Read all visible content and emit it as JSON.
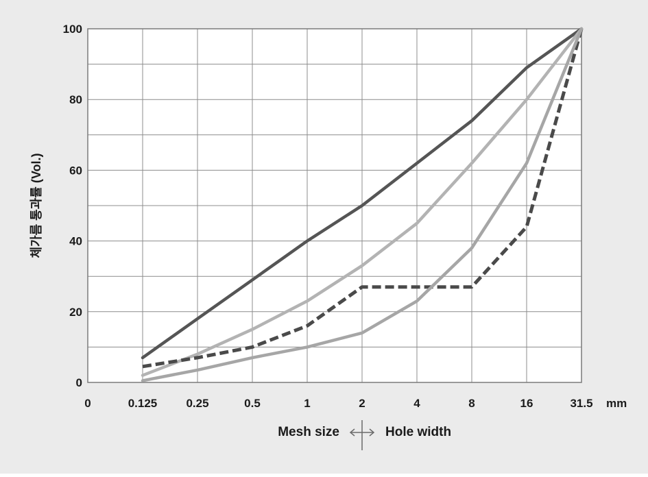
{
  "chart_data": {
    "type": "line",
    "title": "",
    "ylabel": "체가름 통과률 (Vol.)",
    "x_unit": "mm",
    "x": [
      "0.125",
      "0.25",
      "0.5",
      "1",
      "2",
      "4",
      "8",
      "16",
      "31.5"
    ],
    "x_ticks": [
      "0",
      "0.125",
      "0.25",
      "0.5",
      "1",
      "2",
      "4",
      "8",
      "16",
      "31.5"
    ],
    "y_ticks": [
      "0",
      "20",
      "40",
      "60",
      "80",
      "100"
    ],
    "ylim": [
      0,
      100
    ],
    "grid": true,
    "series": [
      {
        "color": "#555555",
        "style": "solid",
        "values": [
          7,
          18,
          29,
          40,
          50,
          62,
          74,
          89,
          100
        ]
      },
      {
        "color": "#b3b3b3",
        "style": "solid",
        "values": [
          2,
          8,
          15,
          23,
          33,
          45,
          62,
          80,
          100
        ]
      },
      {
        "color": "#4a4a4a",
        "style": "dashed",
        "values": [
          4.5,
          7,
          10,
          16,
          27,
          27,
          27,
          44,
          100
        ]
      },
      {
        "color": "#a6a6a6",
        "style": "solid",
        "values": [
          0.5,
          3.5,
          7,
          10,
          14,
          23,
          38,
          62,
          100
        ]
      }
    ]
  },
  "legend": {
    "left_label": "Mesh size",
    "right_label": "Hole width"
  }
}
